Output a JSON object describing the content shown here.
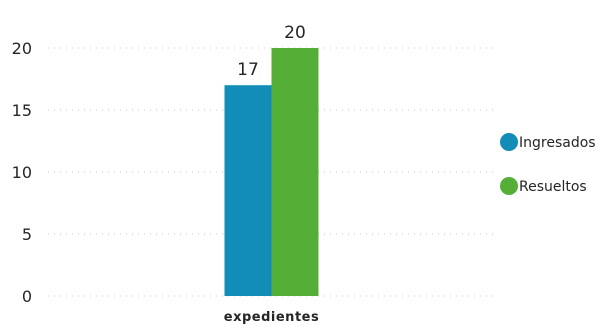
{
  "chart_data": {
    "type": "bar",
    "categories": [
      "expedientes"
    ],
    "series": [
      {
        "name": "Ingresados",
        "values": [
          17
        ],
        "color": "#118DB8"
      },
      {
        "name": "Resueltos",
        "values": [
          20
        ],
        "color": "#55AE36"
      }
    ],
    "ylim": [
      0,
      20
    ],
    "yticks": [
      0,
      5,
      10,
      15,
      20
    ],
    "grid": true,
    "legend_position": "right",
    "data_labels": true,
    "title": "",
    "xlabel": "",
    "ylabel": ""
  }
}
